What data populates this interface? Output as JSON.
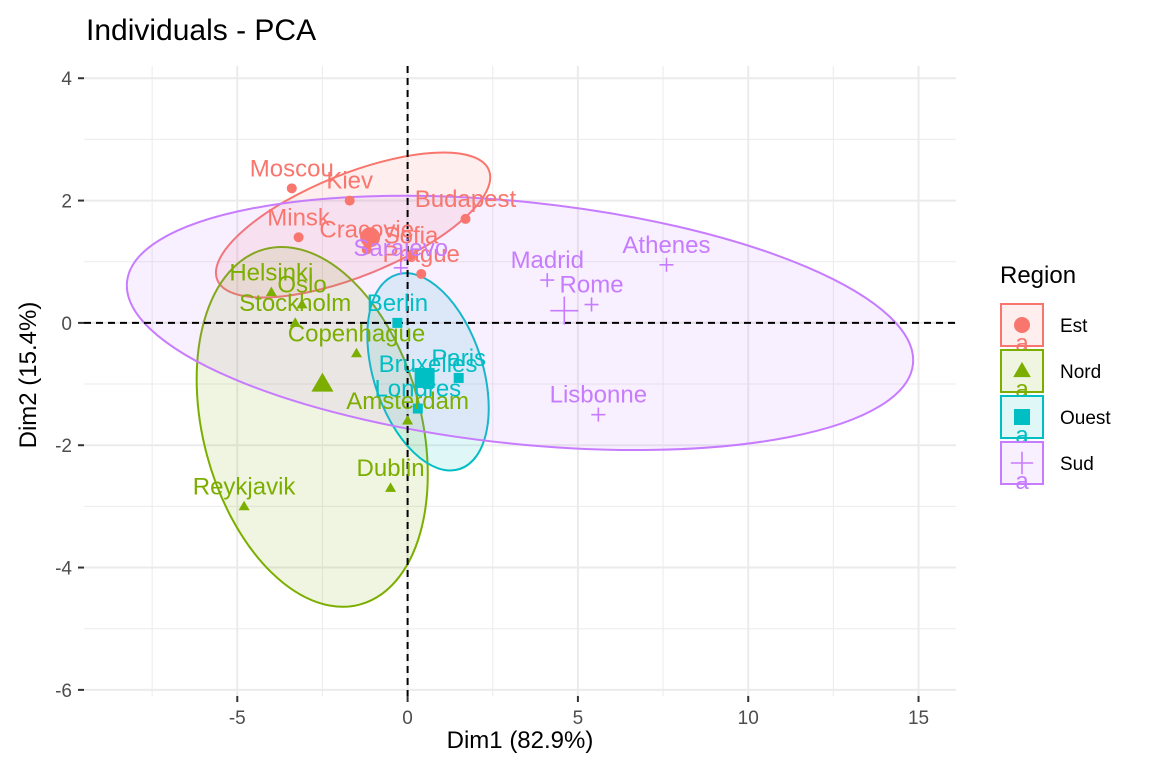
{
  "chart_data": {
    "type": "scatter",
    "title": "Individuals - PCA",
    "xlabel": "Dim1 (82.9%)",
    "ylabel": "Dim2 (15.4%)",
    "xlim": [
      -9.5,
      16.1
    ],
    "ylim": [
      -6.1,
      4.2
    ],
    "x_ticks": [
      -5,
      0,
      5,
      10,
      15
    ],
    "y_ticks": [
      -6,
      -4,
      -2,
      0,
      2,
      4
    ],
    "grid": true,
    "reference_lines": {
      "x": 0,
      "y": 0
    },
    "legend_title": "Region",
    "legend_position": "right",
    "legend_key_letter": "a",
    "series": [
      {
        "name": "Est",
        "color": "#F8766D",
        "marker": "circle",
        "points": [
          {
            "label": "Moscou",
            "x": -3.4,
            "y": 2.2
          },
          {
            "label": "Kiev",
            "x": -1.7,
            "y": 2.0
          },
          {
            "label": "Budapest",
            "x": 1.7,
            "y": 1.7
          },
          {
            "label": "Minsk",
            "x": -3.2,
            "y": 1.4
          },
          {
            "label": "Cracovie",
            "x": -1.2,
            "y": 1.2
          },
          {
            "label": "Sofia",
            "x": 0.1,
            "y": 1.1
          },
          {
            "label": "Prague",
            "x": 0.4,
            "y": 0.8
          }
        ],
        "centroid": {
          "x": -1.1,
          "y": 1.4
        },
        "ellipse": {
          "cx": -1.6,
          "cy": 1.6,
          "rx": 4.3,
          "ry": 1.5,
          "angle": -22
        }
      },
      {
        "name": "Nord",
        "color": "#7CAE00",
        "marker": "triangle",
        "points": [
          {
            "label": "Helsinki",
            "x": -4.0,
            "y": 0.5
          },
          {
            "label": "Oslo",
            "x": -3.1,
            "y": 0.3
          },
          {
            "label": "Stockholm",
            "x": -3.3,
            "y": 0.0
          },
          {
            "label": "Copenhague",
            "x": -1.5,
            "y": -0.5
          },
          {
            "label": "Amsterdam",
            "x": 0.0,
            "y": -1.6
          },
          {
            "label": "Dublin",
            "x": -0.5,
            "y": -2.7
          },
          {
            "label": "Reykjavik",
            "x": -4.8,
            "y": -3.0
          }
        ],
        "centroid": {
          "x": -2.5,
          "y": -1.0
        },
        "ellipse": {
          "cx": -2.8,
          "cy": -1.7,
          "rx": 5.4,
          "ry": 3.2,
          "angle": 75
        }
      },
      {
        "name": "Ouest",
        "color": "#00BFC4",
        "marker": "square",
        "points": [
          {
            "label": "Berlin",
            "x": -0.3,
            "y": 0.0
          },
          {
            "label": "Paris",
            "x": 1.5,
            "y": -0.9
          },
          {
            "label": "Bruxelles",
            "x": 0.6,
            "y": -1.0
          },
          {
            "label": "Londres",
            "x": 0.3,
            "y": -1.4
          }
        ],
        "centroid": {
          "x": 0.5,
          "y": -0.9
        },
        "ellipse": {
          "cx": 0.6,
          "cy": -0.8,
          "rx": 3.0,
          "ry": 1.6,
          "angle": 72
        }
      },
      {
        "name": "Sud",
        "color": "#C77CFF",
        "marker": "plus",
        "points": [
          {
            "label": "Athenes",
            "x": 7.6,
            "y": 0.95
          },
          {
            "label": "Madrid",
            "x": 4.1,
            "y": 0.7
          },
          {
            "label": "Rome",
            "x": 5.4,
            "y": 0.3
          },
          {
            "label": "Sarajevo",
            "x": -0.2,
            "y": 0.9
          },
          {
            "label": "Lisbonne",
            "x": 5.6,
            "y": -1.5
          }
        ],
        "centroid": {
          "x": 4.6,
          "y": 0.2
        },
        "ellipse": {
          "cx": 3.3,
          "cy": 0.0,
          "rx": 11.6,
          "ry": 3.55,
          "angle": 6
        }
      }
    ]
  }
}
